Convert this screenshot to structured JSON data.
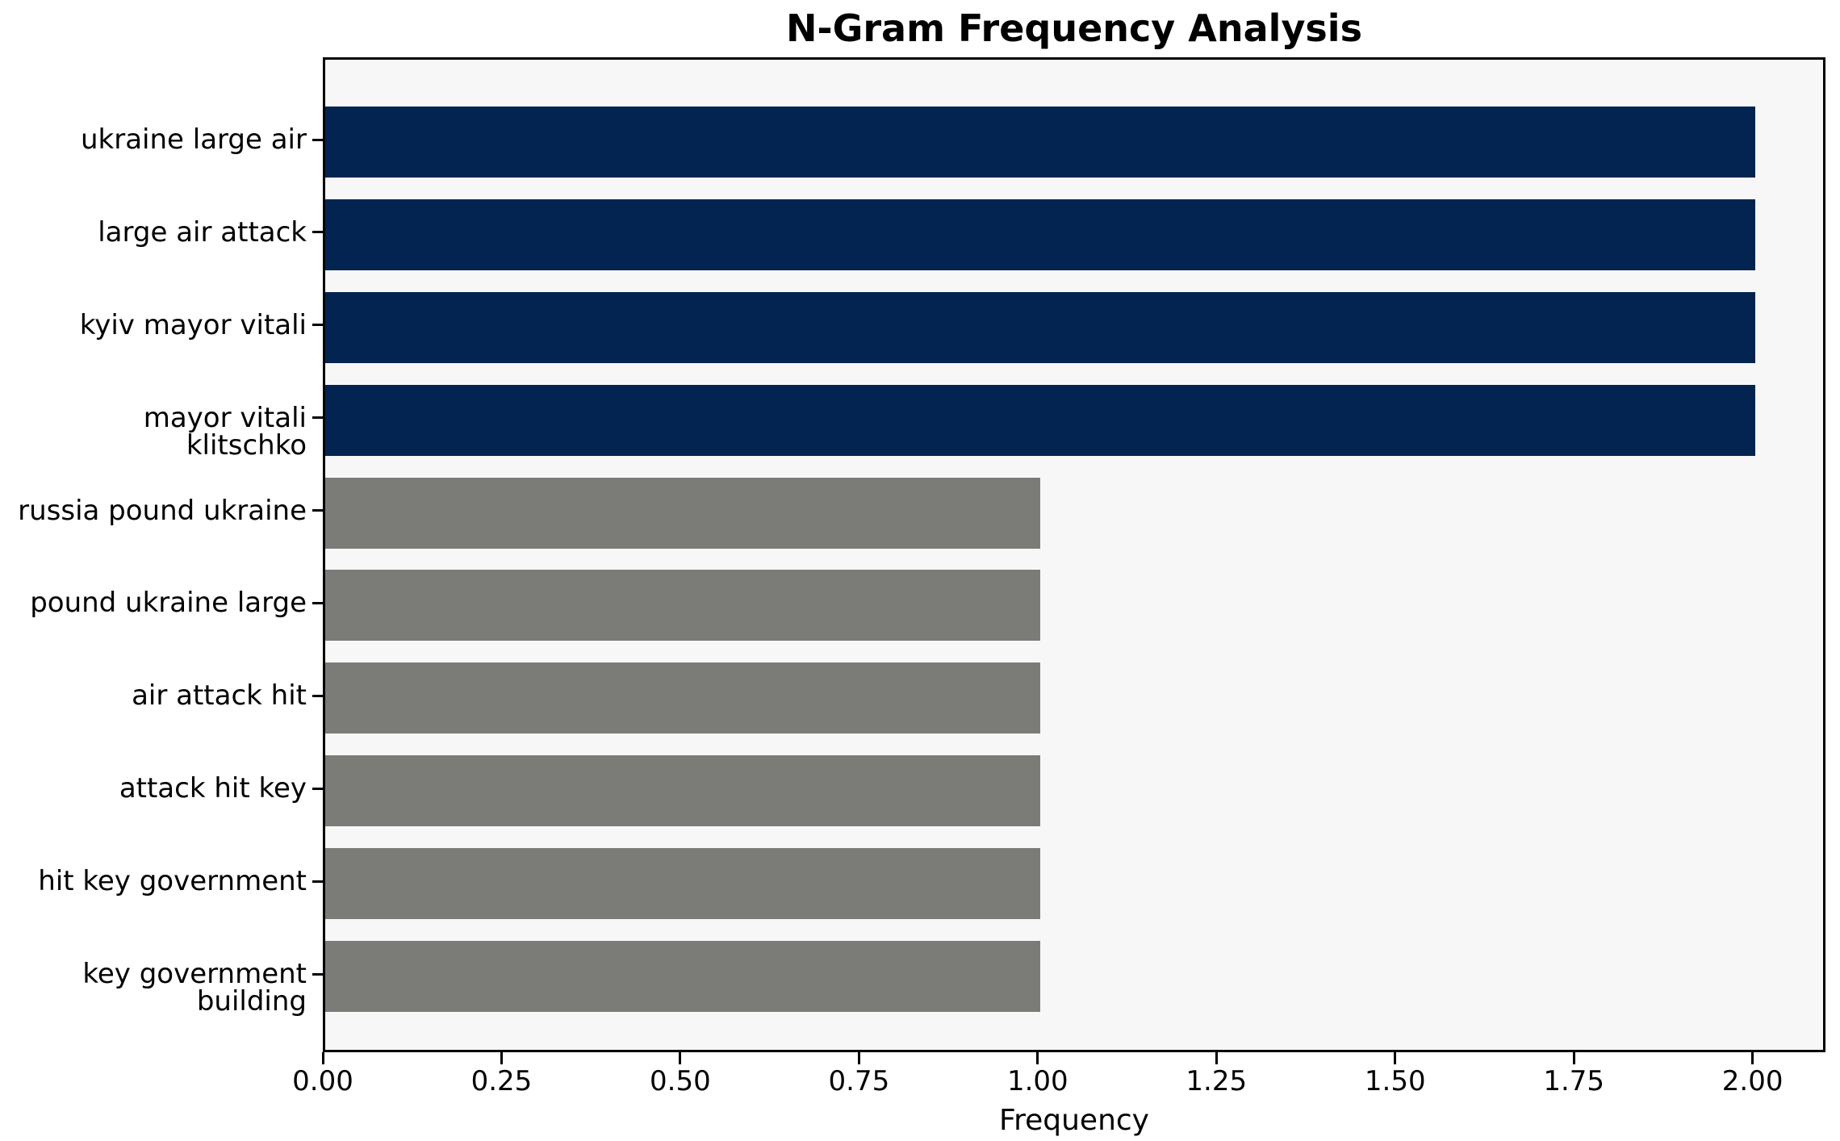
{
  "chart_data": {
    "type": "bar",
    "orientation": "horizontal",
    "title": "N-Gram Frequency Analysis",
    "xlabel": "Frequency",
    "ylabel": "",
    "categories": [
      "ukraine large air",
      "large air attack",
      "kyiv mayor vitali",
      "mayor vitali klitschko",
      "russia pound ukraine",
      "pound ukraine large",
      "air attack hit",
      "attack hit key",
      "hit key government",
      "key government building"
    ],
    "values": [
      2,
      2,
      2,
      2,
      1,
      1,
      1,
      1,
      1,
      1
    ],
    "bar_colors": [
      "#032450",
      "#032450",
      "#032450",
      "#032450",
      "#7b7b78",
      "#7b7b78",
      "#7b7b78",
      "#7b7b78",
      "#7b7b78",
      "#7b7b78"
    ],
    "x_ticks": [
      "0.00",
      "0.25",
      "0.50",
      "0.75",
      "1.00",
      "1.25",
      "1.50",
      "1.75",
      "2.00"
    ],
    "x_tick_values": [
      0,
      0.25,
      0.5,
      0.75,
      1.0,
      1.25,
      1.5,
      1.75,
      2.0
    ],
    "xlim": [
      0,
      2.102
    ],
    "grid": false,
    "legend": null,
    "colors": {
      "highlight_bar": "#032450",
      "regular_bar": "#7b7b78",
      "plot_background": "#f7f7f7",
      "figure_background": "#ffffff",
      "axis": "#000000",
      "text": "#000000"
    }
  }
}
